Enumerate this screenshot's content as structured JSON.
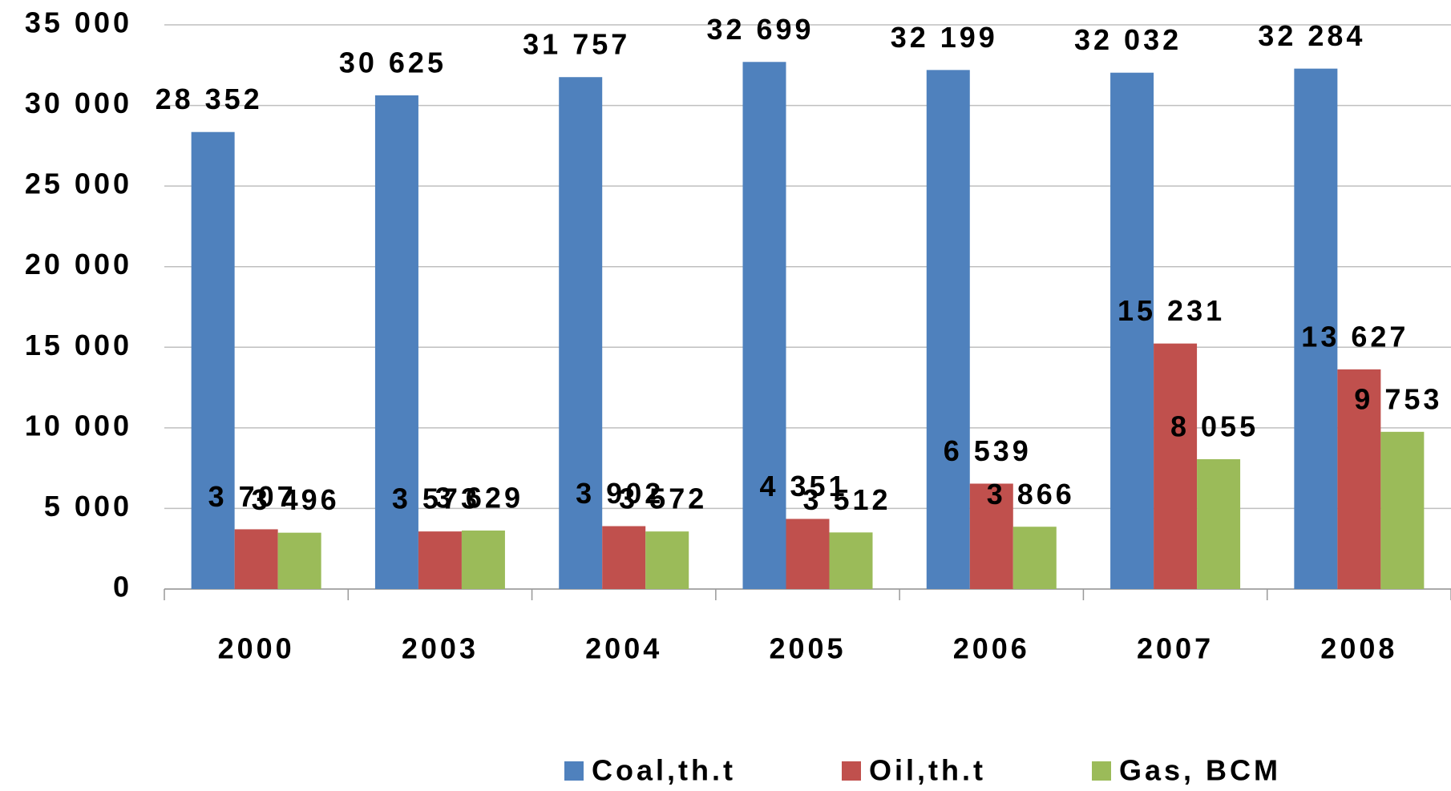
{
  "chart_data": {
    "type": "bar",
    "categories": [
      "2000",
      "2003",
      "2004",
      "2005",
      "2006",
      "2007",
      "2008"
    ],
    "series": [
      {
        "name": "Coal,th.t",
        "color": "#4f81bd",
        "values": [
          28352,
          30625,
          31757,
          32699,
          32199,
          32032,
          32284
        ],
        "value_labels": [
          "28 352",
          "30 625",
          "31 757",
          "32 699",
          "32 199",
          "32 032",
          "32 284"
        ]
      },
      {
        "name": "Oil,th.t",
        "color": "#c0504d",
        "values": [
          3707,
          3573,
          3902,
          4351,
          6539,
          15231,
          13627
        ],
        "value_labels": [
          "3 707",
          "3 573",
          "3 902",
          "4 351",
          "6 539",
          "15 231",
          "13 627"
        ]
      },
      {
        "name": "Gas, BCM",
        "color": "#9bbb59",
        "values": [
          3496,
          3629,
          3572,
          3512,
          3866,
          8055,
          9753
        ],
        "value_labels": [
          "3 496",
          "3 629",
          "3 572",
          "3 512",
          "3 866",
          "8 055",
          "9 753"
        ]
      }
    ],
    "ylim": [
      0,
      35000
    ],
    "yticks": [
      0,
      {
        "value": 5000,
        "label": "5 000"
      },
      {
        "value": 10000,
        "label": "10 000"
      },
      {
        "value": 15000,
        "label": "15 000"
      },
      {
        "value": 20000,
        "label": "20 000"
      },
      {
        "value": 25000,
        "label": "25 000"
      },
      {
        "value": 30000,
        "label": "30 000"
      },
      {
        "value": 35000,
        "label": "35 000"
      }
    ],
    "grid": true,
    "legend": "bottom"
  }
}
